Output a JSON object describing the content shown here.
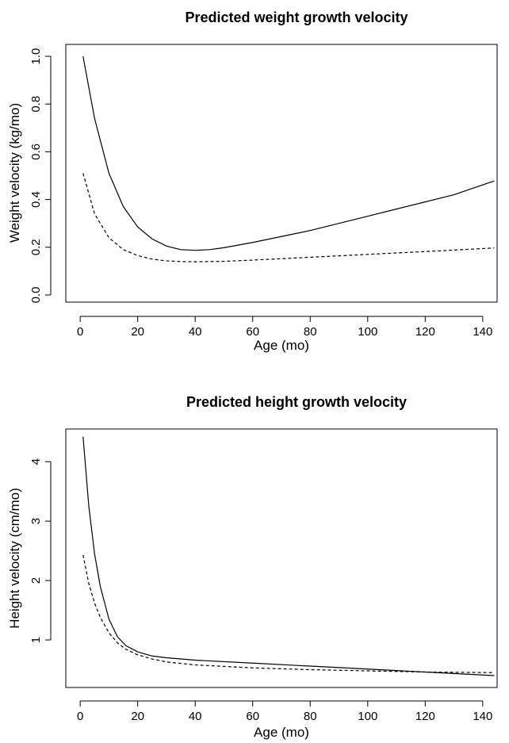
{
  "chart_data": [
    {
      "type": "line",
      "title": "Predicted weight growth velocity",
      "xlabel": "Age (mo)",
      "ylabel": "Weight velocity (kg/mo)",
      "xlim": [
        -5,
        145
      ],
      "ylim": [
        -0.03,
        1.05
      ],
      "xticks": [
        0,
        20,
        40,
        60,
        80,
        100,
        120,
        140
      ],
      "yticks": [
        0.0,
        0.2,
        0.4,
        0.6,
        0.8,
        1.0
      ],
      "ytick_labels": [
        "0.0",
        "0.2",
        "0.4",
        "0.6",
        "0.8",
        "1.0"
      ],
      "grid": false,
      "series": [
        {
          "style": "solid",
          "x": [
            1,
            5,
            10,
            15,
            20,
            25,
            30,
            35,
            40,
            45,
            50,
            60,
            70,
            80,
            90,
            100,
            110,
            120,
            130,
            144
          ],
          "y": [
            1.0,
            0.74,
            0.51,
            0.37,
            0.285,
            0.235,
            0.205,
            0.19,
            0.187,
            0.19,
            0.198,
            0.22,
            0.245,
            0.27,
            0.3,
            0.33,
            0.36,
            0.39,
            0.42,
            0.478
          ]
        },
        {
          "style": "dashed",
          "x": [
            1,
            5,
            10,
            15,
            20,
            25,
            30,
            35,
            40,
            50,
            60,
            70,
            80,
            90,
            100,
            110,
            120,
            130,
            144
          ],
          "y": [
            0.51,
            0.34,
            0.24,
            0.19,
            0.165,
            0.15,
            0.143,
            0.14,
            0.139,
            0.141,
            0.146,
            0.152,
            0.158,
            0.164,
            0.17,
            0.176,
            0.182,
            0.188,
            0.197
          ]
        }
      ]
    },
    {
      "type": "line",
      "title": "Predicted height growth velocity",
      "xlabel": "Age (mo)",
      "ylabel": "Height velocity (cm/mo)",
      "xlim": [
        -5,
        145
      ],
      "ylim": [
        0.2,
        4.55
      ],
      "xticks": [
        0,
        20,
        40,
        60,
        80,
        100,
        120,
        140
      ],
      "yticks": [
        1,
        2,
        3,
        4
      ],
      "ytick_labels": [
        "1",
        "2",
        "3",
        "4"
      ],
      "grid": false,
      "series": [
        {
          "style": "solid",
          "x": [
            1,
            3,
            5,
            7,
            10,
            13,
            16,
            20,
            25,
            30,
            40,
            60,
            80,
            100,
            120,
            144
          ],
          "y": [
            4.42,
            3.25,
            2.45,
            1.9,
            1.35,
            1.05,
            0.9,
            0.8,
            0.73,
            0.7,
            0.66,
            0.61,
            0.56,
            0.51,
            0.46,
            0.4
          ]
        },
        {
          "style": "dashed",
          "x": [
            1,
            3,
            5,
            7,
            10,
            13,
            16,
            20,
            25,
            30,
            40,
            60,
            80,
            100,
            120,
            144
          ],
          "y": [
            2.43,
            1.95,
            1.62,
            1.38,
            1.12,
            0.95,
            0.84,
            0.75,
            0.68,
            0.63,
            0.58,
            0.53,
            0.5,
            0.48,
            0.46,
            0.45
          ]
        }
      ]
    }
  ]
}
